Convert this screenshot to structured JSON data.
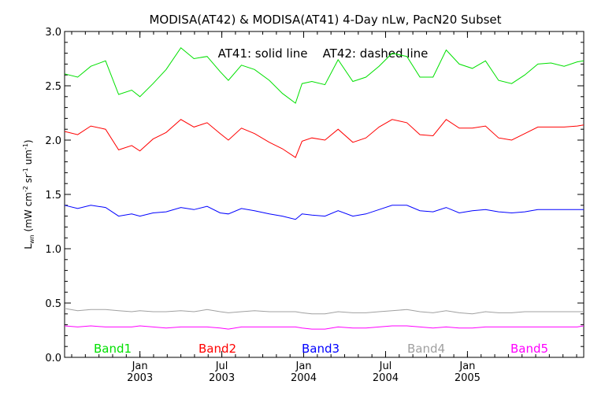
{
  "chart_data": {
    "type": "line",
    "title": "MODISA(AT42) & MODISA(AT41) 4-Day nLw, PacN20 Subset",
    "ylabel": {
      "base": "L",
      "sub": "wn",
      "units_open": " (mW cm",
      "exp1": "-2",
      "units_mid": " sr",
      "exp2": "-1",
      "units_mid2": " um",
      "exp3": "-1",
      "units_close": ")"
    },
    "annotation": "AT41: solid line    AT42: dashed line",
    "xlim": [
      2002.54,
      2005.71
    ],
    "ylim": [
      0.0,
      3.0
    ],
    "yticks": [
      "0.0",
      "0.5",
      "1.0",
      "1.5",
      "2.0",
      "2.5",
      "3.0"
    ],
    "xticks": [
      {
        "x": 2003.0,
        "month": "Jan",
        "year": "2003"
      },
      {
        "x": 2003.5,
        "month": "Jul",
        "year": "2003"
      },
      {
        "x": 2004.0,
        "month": "Jan",
        "year": "2004"
      },
      {
        "x": 2004.5,
        "month": "Jul",
        "year": "2004"
      },
      {
        "x": 2005.0,
        "month": "Jan",
        "year": "2005"
      }
    ],
    "x": [
      2002.54,
      2002.62,
      2002.7,
      2002.79,
      2002.87,
      2002.95,
      2003.0,
      2003.08,
      2003.16,
      2003.25,
      2003.33,
      2003.41,
      2003.49,
      2003.54,
      2003.62,
      2003.7,
      2003.79,
      2003.87,
      2003.95,
      2003.99,
      2004.05,
      2004.13,
      2004.21,
      2004.3,
      2004.38,
      2004.46,
      2004.54,
      2004.63,
      2004.71,
      2004.79,
      2004.87,
      2004.95,
      2005.03,
      2005.11,
      2005.19,
      2005.27,
      2005.35,
      2005.43,
      2005.51,
      2005.59,
      2005.67,
      2005.71
    ],
    "series": [
      {
        "name": "Band1",
        "color": "#00e000",
        "values": [
          2.61,
          2.58,
          2.68,
          2.73,
          2.42,
          2.46,
          2.4,
          2.52,
          2.65,
          2.85,
          2.75,
          2.77,
          2.63,
          2.55,
          2.69,
          2.65,
          2.55,
          2.43,
          2.34,
          2.52,
          2.54,
          2.51,
          2.74,
          2.54,
          2.58,
          2.68,
          2.8,
          2.77,
          2.58,
          2.58,
          2.83,
          2.7,
          2.66,
          2.73,
          2.55,
          2.52,
          2.6,
          2.7,
          2.71,
          2.68,
          2.72,
          2.73
        ]
      },
      {
        "name": "Band2",
        "color": "#ff0000",
        "values": [
          2.08,
          2.05,
          2.13,
          2.1,
          1.91,
          1.95,
          1.9,
          2.01,
          2.07,
          2.19,
          2.12,
          2.16,
          2.06,
          2.0,
          2.11,
          2.06,
          1.98,
          1.92,
          1.84,
          1.99,
          2.02,
          2.0,
          2.1,
          1.98,
          2.02,
          2.12,
          2.19,
          2.16,
          2.05,
          2.04,
          2.19,
          2.11,
          2.11,
          2.13,
          2.02,
          2.0,
          2.06,
          2.12,
          2.12,
          2.12,
          2.13,
          2.14
        ]
      },
      {
        "name": "Band3",
        "color": "#0000ff",
        "values": [
          1.4,
          1.37,
          1.4,
          1.38,
          1.3,
          1.32,
          1.3,
          1.33,
          1.34,
          1.38,
          1.36,
          1.39,
          1.33,
          1.32,
          1.37,
          1.35,
          1.32,
          1.3,
          1.27,
          1.32,
          1.31,
          1.3,
          1.35,
          1.3,
          1.32,
          1.36,
          1.4,
          1.4,
          1.35,
          1.34,
          1.38,
          1.33,
          1.35,
          1.36,
          1.34,
          1.33,
          1.34,
          1.36,
          1.36,
          1.36,
          1.36,
          1.36
        ]
      },
      {
        "name": "Band4",
        "color": "#a0a0a0",
        "values": [
          0.45,
          0.43,
          0.44,
          0.44,
          0.43,
          0.42,
          0.43,
          0.42,
          0.42,
          0.43,
          0.42,
          0.44,
          0.42,
          0.41,
          0.42,
          0.43,
          0.42,
          0.42,
          0.42,
          0.41,
          0.4,
          0.4,
          0.42,
          0.41,
          0.41,
          0.42,
          0.43,
          0.44,
          0.42,
          0.41,
          0.43,
          0.41,
          0.4,
          0.42,
          0.41,
          0.41,
          0.42,
          0.42,
          0.42,
          0.42,
          0.42,
          0.42
        ]
      },
      {
        "name": "Band5",
        "color": "#ff00ff",
        "values": [
          0.29,
          0.28,
          0.29,
          0.28,
          0.28,
          0.28,
          0.29,
          0.28,
          0.27,
          0.28,
          0.28,
          0.28,
          0.27,
          0.26,
          0.28,
          0.28,
          0.28,
          0.28,
          0.28,
          0.27,
          0.26,
          0.26,
          0.28,
          0.27,
          0.27,
          0.28,
          0.29,
          0.29,
          0.28,
          0.27,
          0.28,
          0.27,
          0.27,
          0.28,
          0.28,
          0.28,
          0.28,
          0.28,
          0.28,
          0.28,
          0.28,
          0.29
        ]
      }
    ],
    "grid": false,
    "legend": "bottom"
  }
}
